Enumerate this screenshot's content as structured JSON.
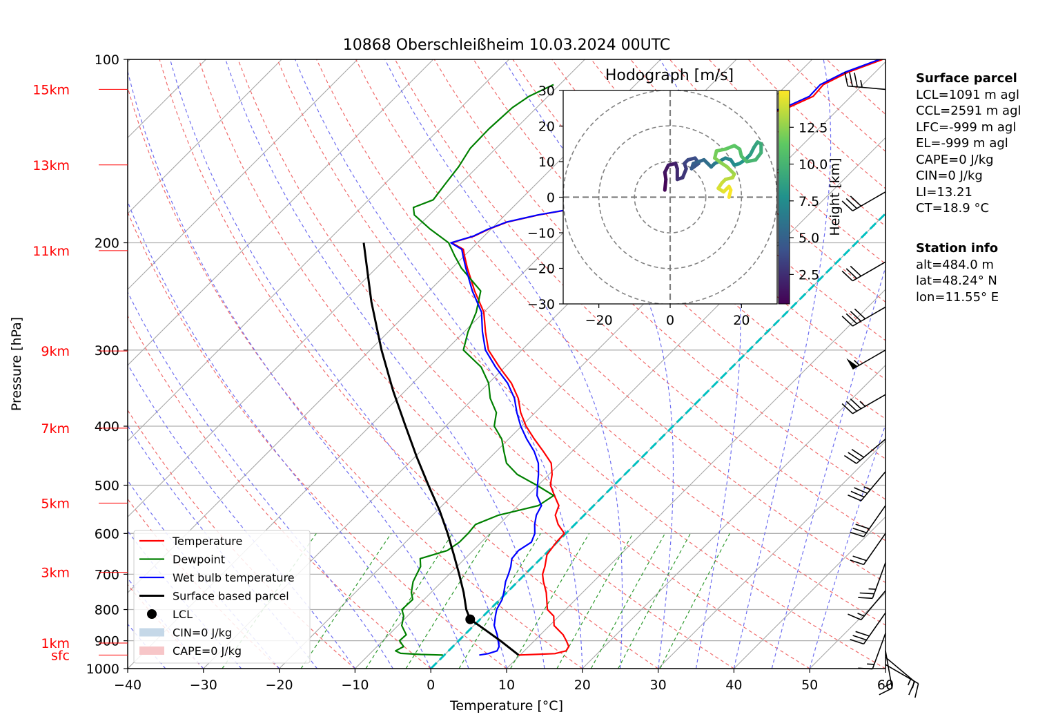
{
  "chart_data": {
    "type": "line",
    "subtype": "skew-T log-P diagram",
    "title": "10868 Oberschleißheim 10.03.2024 00UTC",
    "xlabel": "Temperature [°C]",
    "ylabel": "Pressure [hPa]",
    "xlim": [
      -40,
      60
    ],
    "ylim": [
      1000,
      100
    ],
    "yscale": "log",
    "grid": true,
    "x_ticks": [
      -40,
      -30,
      -20,
      -10,
      0,
      10,
      20,
      30,
      40,
      50,
      60
    ],
    "x_tick_labels": [
      "−40",
      "−30",
      "−20",
      "−10",
      "0",
      "10",
      "20",
      "30",
      "40",
      "50",
      "60"
    ],
    "y_ticks": [
      100,
      200,
      300,
      400,
      500,
      600,
      700,
      800,
      900,
      1000
    ],
    "y_tick_labels": [
      "100",
      "200",
      "300",
      "400",
      "500",
      "600",
      "700",
      "800",
      "900",
      "1000"
    ],
    "height_labels": [
      {
        "label": "15km",
        "p": 112
      },
      {
        "label": "13km",
        "p": 149
      },
      {
        "label": "11km",
        "p": 206
      },
      {
        "label": "9km",
        "p": 301
      },
      {
        "label": "7km",
        "p": 403
      },
      {
        "label": "5km",
        "p": 535
      },
      {
        "label": "3km",
        "p": 695
      },
      {
        "label": "1km",
        "p": 908
      },
      {
        "label": "sfc",
        "p": 950
      }
    ],
    "legend": {
      "placement": "lower-left",
      "entries": [
        {
          "label": "Temperature",
          "kind": "line",
          "color": "#ff0000"
        },
        {
          "label": "Dewpoint",
          "kind": "line",
          "color": "#008000"
        },
        {
          "label": "Wet bulb temperature",
          "kind": "line",
          "color": "#0000ff"
        },
        {
          "label": "Surface based parcel",
          "kind": "line",
          "color": "#000000"
        },
        {
          "label": "LCL",
          "kind": "marker",
          "color": "#000000"
        },
        {
          "label": "CIN=0 J/kg",
          "kind": "patch",
          "color": "#c5d8e8"
        },
        {
          "label": "CAPE=0 J/kg",
          "kind": "patch",
          "color": "#f7c6c8"
        }
      ]
    },
    "series": [
      {
        "name": "Temperature",
        "color": "#ff0000",
        "points": [
          [
            950,
            9.8
          ],
          [
            945,
            14.4
          ],
          [
            935,
            15.5
          ],
          [
            920,
            15.3
          ],
          [
            900,
            14.2
          ],
          [
            880,
            13.0
          ],
          [
            850,
            10.6
          ],
          [
            820,
            9.3
          ],
          [
            800,
            7.6
          ],
          [
            750,
            5.2
          ],
          [
            720,
            3.4
          ],
          [
            700,
            2.3
          ],
          [
            680,
            1.6
          ],
          [
            650,
            0.3
          ],
          [
            620,
            -0.1
          ],
          [
            600,
            -0.2
          ],
          [
            580,
            -2.2
          ],
          [
            560,
            -3.8
          ],
          [
            540,
            -4.6
          ],
          [
            520,
            -6.5
          ],
          [
            500,
            -8.4
          ],
          [
            480,
            -9.6
          ],
          [
            460,
            -11.2
          ],
          [
            440,
            -13.8
          ],
          [
            420,
            -16.6
          ],
          [
            400,
            -19.4
          ],
          [
            380,
            -21.9
          ],
          [
            360,
            -24.1
          ],
          [
            340,
            -27.0
          ],
          [
            320,
            -30.7
          ],
          [
            300,
            -34.4
          ],
          [
            280,
            -37.2
          ],
          [
            260,
            -40.0
          ],
          [
            240,
            -44.0
          ],
          [
            220,
            -48.0
          ],
          [
            210,
            -50.0
          ],
          [
            205,
            -51.0
          ],
          [
            200,
            -53.4
          ],
          [
            195,
            -51.3
          ],
          [
            190,
            -50.3
          ],
          [
            185,
            -48.8
          ],
          [
            180,
            -45.6
          ],
          [
            175,
            -41.0
          ],
          [
            170,
            -35.6
          ],
          [
            165,
            -33.9
          ],
          [
            160,
            -34.5
          ],
          [
            150,
            -34.6
          ],
          [
            140,
            -33.5
          ],
          [
            130,
            -30.5
          ],
          [
            125,
            -30.0
          ],
          [
            120,
            -26.8
          ],
          [
            115,
            -25.0
          ],
          [
            110,
            -25.2
          ],
          [
            105,
            -23.6
          ],
          [
            100,
            -20.7
          ]
        ]
      },
      {
        "name": "Dewpoint",
        "color": "#008000",
        "points": [
          [
            950,
            -0.2
          ],
          [
            948,
            -3.2
          ],
          [
            944,
            -6.0
          ],
          [
            935,
            -7.0
          ],
          [
            920,
            -6.5
          ],
          [
            900,
            -7.8
          ],
          [
            880,
            -7.7
          ],
          [
            850,
            -9.5
          ],
          [
            820,
            -10.5
          ],
          [
            800,
            -11.6
          ],
          [
            770,
            -11.5
          ],
          [
            750,
            -12.6
          ],
          [
            720,
            -13.8
          ],
          [
            700,
            -14.3
          ],
          [
            680,
            -14.8
          ],
          [
            660,
            -15.9
          ],
          [
            640,
            -13.4
          ],
          [
            620,
            -12.9
          ],
          [
            600,
            -12.9
          ],
          [
            580,
            -13.1
          ],
          [
            560,
            -11.3
          ],
          [
            540,
            -7.3
          ],
          [
            520,
            -6.6
          ],
          [
            500,
            -10.2
          ],
          [
            480,
            -14.2
          ],
          [
            460,
            -17.1
          ],
          [
            440,
            -19.0
          ],
          [
            420,
            -20.9
          ],
          [
            400,
            -23.6
          ],
          [
            380,
            -25.1
          ],
          [
            360,
            -27.8
          ],
          [
            340,
            -30.0
          ],
          [
            320,
            -33.1
          ],
          [
            300,
            -37.7
          ],
          [
            280,
            -39.5
          ],
          [
            260,
            -41.0
          ],
          [
            240,
            -43.2
          ],
          [
            220,
            -48.8
          ],
          [
            210,
            -51.3
          ],
          [
            200,
            -53.8
          ],
          [
            190,
            -58.0
          ],
          [
            180,
            -62.0
          ],
          [
            175,
            -63.1
          ],
          [
            170,
            -61.5
          ],
          [
            160,
            -62.0
          ],
          [
            150,
            -62.5
          ],
          [
            140,
            -63.4
          ],
          [
            130,
            -63.5
          ],
          [
            120,
            -63.2
          ],
          [
            115,
            -62.5
          ],
          [
            110,
            -60.8
          ]
        ]
      },
      {
        "name": "Wet bulb temperature",
        "color": "#0000ff",
        "points": [
          [
            950,
            4.6
          ],
          [
            945,
            5.6
          ],
          [
            935,
            6.4
          ],
          [
            920,
            6.1
          ],
          [
            900,
            5.2
          ],
          [
            880,
            4.3
          ],
          [
            850,
            2.7
          ],
          [
            820,
            1.6
          ],
          [
            800,
            0.9
          ],
          [
            770,
            0.3
          ],
          [
            750,
            -0.4
          ],
          [
            720,
            -1.6
          ],
          [
            700,
            -2.2
          ],
          [
            680,
            -2.9
          ],
          [
            660,
            -3.8
          ],
          [
            640,
            -4.0
          ],
          [
            620,
            -3.4
          ],
          [
            600,
            -4.1
          ],
          [
            580,
            -5.3
          ],
          [
            560,
            -6.3
          ],
          [
            540,
            -6.9
          ],
          [
            520,
            -8.8
          ],
          [
            500,
            -10.1
          ],
          [
            480,
            -11.4
          ],
          [
            460,
            -12.9
          ],
          [
            440,
            -15.0
          ],
          [
            420,
            -17.6
          ],
          [
            400,
            -20.1
          ],
          [
            380,
            -22.4
          ],
          [
            360,
            -24.6
          ],
          [
            340,
            -27.5
          ],
          [
            320,
            -31.2
          ],
          [
            300,
            -34.8
          ],
          [
            280,
            -37.6
          ],
          [
            260,
            -40.3
          ],
          [
            240,
            -44.3
          ],
          [
            220,
            -48.2
          ],
          [
            210,
            -50.2
          ],
          [
            205,
            -51.2
          ],
          [
            200,
            -53.5
          ],
          [
            195,
            -51.4
          ],
          [
            190,
            -50.4
          ],
          [
            185,
            -48.9
          ],
          [
            180,
            -45.7
          ],
          [
            175,
            -41.1
          ],
          [
            170,
            -35.8
          ],
          [
            165,
            -34.2
          ],
          [
            160,
            -34.8
          ],
          [
            150,
            -34.9
          ],
          [
            140,
            -33.8
          ],
          [
            130,
            -30.8
          ],
          [
            125,
            -30.4
          ],
          [
            120,
            -27.3
          ],
          [
            115,
            -25.5
          ],
          [
            110,
            -25.6
          ],
          [
            105,
            -24.0
          ],
          [
            100,
            -21.1
          ]
        ]
      },
      {
        "name": "Surface based parcel",
        "color": "#000000",
        "points": [
          [
            950,
            9.8
          ],
          [
            900,
            5.5
          ],
          [
            860,
            1.7
          ],
          [
            830,
            -1.3
          ],
          [
            800,
            -3.1
          ],
          [
            750,
            -5.7
          ],
          [
            700,
            -8.7
          ],
          [
            650,
            -12.0
          ],
          [
            600,
            -15.6
          ],
          [
            550,
            -19.7
          ],
          [
            500,
            -24.5
          ],
          [
            450,
            -29.7
          ],
          [
            400,
            -35.3
          ],
          [
            350,
            -41.6
          ],
          [
            300,
            -48.5
          ],
          [
            250,
            -56.2
          ],
          [
            200,
            -65.0
          ]
        ]
      }
    ],
    "lcl_marker": {
      "p": 830,
      "t": -1.3
    },
    "wind_barbs": [
      {
        "p": 112,
        "speed": 35,
        "dir": 275
      },
      {
        "p": 165,
        "speed": 30,
        "dir": 240
      },
      {
        "p": 215,
        "speed": 30,
        "dir": 240
      },
      {
        "p": 255,
        "speed": 40,
        "dir": 240
      },
      {
        "p": 300,
        "speed": 55,
        "dir": 240
      },
      {
        "p": 355,
        "speed": 35,
        "dir": 240
      },
      {
        "p": 420,
        "speed": 30,
        "dir": 230
      },
      {
        "p": 475,
        "speed": 35,
        "dir": 220
      },
      {
        "p": 540,
        "speed": 30,
        "dir": 215
      },
      {
        "p": 600,
        "speed": 20,
        "dir": 215
      },
      {
        "p": 670,
        "speed": 25,
        "dir": 200
      },
      {
        "p": 745,
        "speed": 15,
        "dir": 220
      },
      {
        "p": 810,
        "speed": 30,
        "dir": 215
      },
      {
        "p": 875,
        "speed": 15,
        "dir": 200
      },
      {
        "p": 935,
        "speed": 15,
        "dir": 170
      },
      {
        "p": 958,
        "speed": 15,
        "dir": 130
      },
      {
        "p": 985,
        "speed": 15,
        "dir": 120
      }
    ],
    "hodograph": {
      "title": "Hodograph [m/s]",
      "xlim": [
        -30,
        30
      ],
      "ylim": [
        -30,
        30
      ],
      "x_ticks": [
        -20,
        0,
        20
      ],
      "x_tick_labels": [
        "−20",
        "0",
        "20"
      ],
      "y_ticks": [
        -30,
        -20,
        -10,
        0,
        10,
        20,
        30
      ],
      "y_tick_labels": [
        "−30",
        "−20",
        "−10",
        "0",
        "10",
        "20",
        "30"
      ],
      "rings": [
        10,
        20,
        30
      ],
      "colorbar": {
        "label": "Height [km]",
        "ticks": [
          2.5,
          5.0,
          7.5,
          10.0,
          12.5
        ],
        "tick_labels": [
          "2.5",
          "5.0",
          "7.5",
          "10.0",
          "12.5"
        ],
        "range": [
          0.5,
          15
        ]
      },
      "points": [
        [
          -1.5,
          2,
          0.5
        ],
        [
          -1.2,
          5,
          0.9
        ],
        [
          -1.5,
          7,
          1.2
        ],
        [
          -0.5,
          9,
          1.5
        ],
        [
          1.5,
          9.5,
          1.8
        ],
        [
          2,
          8,
          2.1
        ],
        [
          2,
          5,
          2.4
        ],
        [
          3.5,
          5.5,
          2.7
        ],
        [
          4.5,
          8,
          3.0
        ],
        [
          4,
          9.5,
          3.3
        ],
        [
          5,
          10.5,
          3.6
        ],
        [
          7,
          11,
          3.9
        ],
        [
          8,
          9.5,
          4.2
        ],
        [
          6,
          8,
          4.5
        ],
        [
          6.5,
          9.5,
          4.8
        ],
        [
          8,
          10,
          5.1
        ],
        [
          9.5,
          10.5,
          5.4
        ],
        [
          10.5,
          9.5,
          5.7
        ],
        [
          11.5,
          8.5,
          6.0
        ],
        [
          12.5,
          9.5,
          6.3
        ],
        [
          14,
          10.2,
          6.6
        ],
        [
          15.5,
          11,
          6.9
        ],
        [
          17,
          10.5,
          7.2
        ],
        [
          18,
          9,
          7.5
        ],
        [
          19.5,
          9.5,
          7.8
        ],
        [
          21,
          10.5,
          8.1
        ],
        [
          22.5,
          12,
          8.4
        ],
        [
          23.5,
          14,
          8.7
        ],
        [
          24.5,
          15.5,
          9.0
        ],
        [
          25.5,
          15,
          9.3
        ],
        [
          25.5,
          12.5,
          9.6
        ],
        [
          24,
          10.5,
          9.9
        ],
        [
          21.5,
          10,
          10.2
        ],
        [
          20,
          11.5,
          10.5
        ],
        [
          19.5,
          13.5,
          10.8
        ],
        [
          18,
          14.5,
          11.1
        ],
        [
          15.5,
          13.5,
          11.4
        ],
        [
          13,
          13,
          11.7
        ],
        [
          12.5,
          11,
          12.0
        ],
        [
          14.5,
          9.5,
          12.3
        ],
        [
          16,
          8.5,
          12.6
        ],
        [
          18,
          6.5,
          12.9
        ],
        [
          17.5,
          5.5,
          13.2
        ],
        [
          15.5,
          5,
          13.5
        ],
        [
          14.5,
          4,
          13.8
        ],
        [
          13.5,
          2.5,
          14.1
        ],
        [
          15,
          1.5,
          14.4
        ],
        [
          16.5,
          3,
          14.6
        ],
        [
          17,
          2,
          14.8
        ],
        [
          16.5,
          0,
          15.0
        ]
      ]
    }
  },
  "surface_parcel": {
    "heading": "Surface parcel",
    "lines": [
      "LCL=1091 m agl",
      "CCL=2591 m agl",
      "LFC=-999 m agl",
      "EL=-999 m agl",
      "CAPE=0 J/kg",
      "CIN=0 J/kg",
      "LI=13.21",
      "CT=18.9 °C"
    ]
  },
  "station_info": {
    "heading": "Station info",
    "lines": [
      "alt=484.0 m",
      "lat=48.24° N",
      "lon=11.55° E"
    ]
  }
}
